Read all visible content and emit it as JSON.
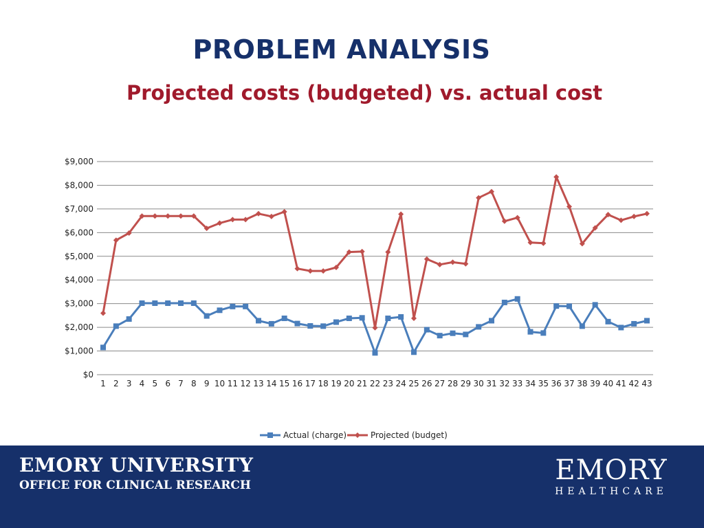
{
  "header": {
    "title": "PROBLEM ANALYSIS",
    "subtitle": "Projected costs (budgeted) vs. actual cost"
  },
  "footer": {
    "org": "EMORY UNIVERSITY",
    "dept": "OFFICE FOR CLINICAL RESEARCH",
    "logo_main": "EMORY",
    "logo_sub": "HEALTHCARE",
    "background": "#16306a"
  },
  "chart_data": {
    "type": "line",
    "title": "",
    "xlabel": "",
    "ylabel": "",
    "categories": [
      "1",
      "2",
      "3",
      "4",
      "5",
      "6",
      "7",
      "8",
      "9",
      "10",
      "11",
      "12",
      "13",
      "14",
      "15",
      "16",
      "17",
      "18",
      "19",
      "20",
      "21",
      "22",
      "23",
      "24",
      "25",
      "26",
      "27",
      "28",
      "29",
      "30",
      "31",
      "32",
      "33",
      "34",
      "35",
      "36",
      "37",
      "38",
      "39",
      "40",
      "41",
      "42",
      "43"
    ],
    "ylim": [
      0,
      9000
    ],
    "yticks": [
      0,
      1000,
      2000,
      3000,
      4000,
      5000,
      6000,
      7000,
      8000,
      9000
    ],
    "ytick_labels": [
      "$0",
      "$1,000",
      "$2,000",
      "$3,000",
      "$4,000",
      "$5,000",
      "$6,000",
      "$7,000",
      "$8,000",
      "$9,000"
    ],
    "grid": true,
    "legend_position": "bottom",
    "series": [
      {
        "name": "Actual (charge)",
        "color": "#4a7ebb",
        "marker": "square",
        "values": [
          1150,
          2050,
          2350,
          3020,
          3020,
          3020,
          3020,
          3020,
          2480,
          2720,
          2880,
          2880,
          2280,
          2150,
          2380,
          2160,
          2060,
          2050,
          2220,
          2380,
          2400,
          920,
          2380,
          2440,
          950,
          1900,
          1650,
          1750,
          1700,
          2020,
          2280,
          3050,
          3200,
          1810,
          1760,
          2900,
          2890,
          2050,
          2950,
          2240,
          1990,
          2150,
          2280
        ]
      },
      {
        "name": "Projected (budget)",
        "color": "#c0504d",
        "marker": "diamond",
        "values": [
          2600,
          5680,
          5980,
          6700,
          6700,
          6700,
          6700,
          6700,
          6180,
          6400,
          6550,
          6550,
          6800,
          6680,
          6880,
          4480,
          4380,
          4380,
          4530,
          5180,
          5200,
          1980,
          5180,
          6780,
          2380,
          4880,
          4650,
          4750,
          4680,
          7470,
          7730,
          6480,
          6630,
          5580,
          5550,
          8350,
          7100,
          5530,
          6200,
          6760,
          6520,
          6680,
          6800
        ]
      }
    ]
  }
}
